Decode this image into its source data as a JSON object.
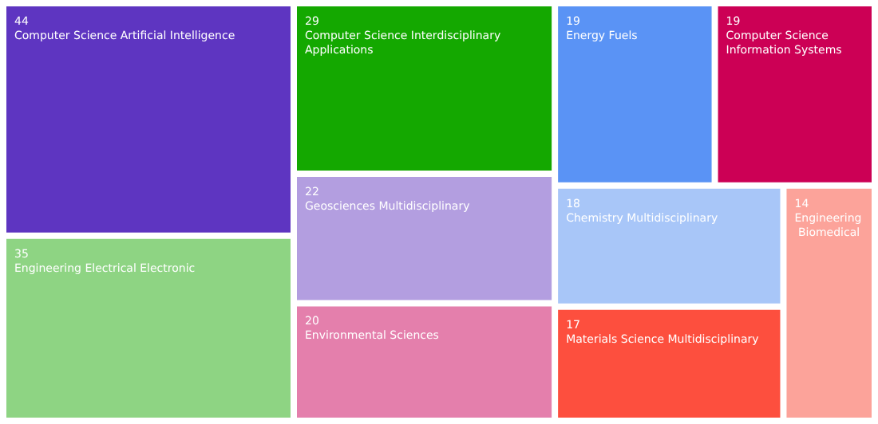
{
  "chart_data": {
    "type": "other",
    "categories": [
      "Computer Science Artificial Intelligence",
      "Engineering Electrical Electronic",
      "Computer Science Interdisciplinary Applications",
      "Geosciences Multidisciplinary",
      "Environmental Sciences",
      "Computer Science Information Systems",
      "Energy Fuels",
      "Chemistry Multidisciplinary",
      "Materials Science Multidisciplinary",
      "Engineering Biomedical"
    ],
    "values": [
      44,
      35,
      29,
      22,
      20,
      19,
      19,
      18,
      17,
      14
    ],
    "colors": [
      "#5e35c1",
      "#8ed483",
      "#14a800",
      "#b39ee0",
      "#e47fac",
      "#cc0055",
      "#5a93f5",
      "#a8c6f8",
      "#fd4f3e",
      "#fca39a"
    ],
    "data_labels": true
  }
}
